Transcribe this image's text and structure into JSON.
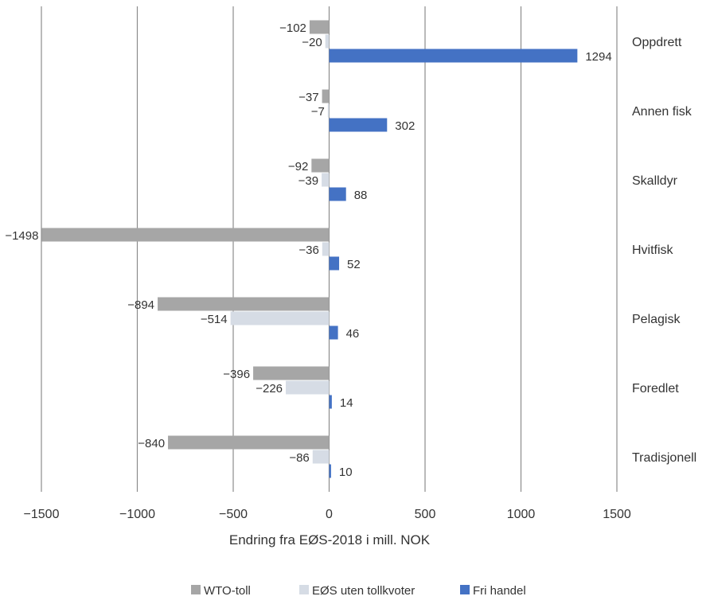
{
  "chart_data": {
    "type": "bar",
    "orientation": "horizontal",
    "categories": [
      "Oppdrett",
      "Annen fisk",
      "Skalldyr",
      "Hvitfisk",
      "Pelagisk",
      "Foredlet",
      "Tradisjonell"
    ],
    "series": [
      {
        "name": "WTO-toll",
        "color": "#a6a6a6",
        "values": [
          -102,
          -37,
          -92,
          -1498,
          -894,
          -396,
          -840
        ]
      },
      {
        "name": "EØS uten tollkvoter",
        "color": "#d6dce5",
        "values": [
          -20,
          -7,
          -39,
          -36,
          -514,
          -226,
          -86
        ]
      },
      {
        "name": "Fri handel",
        "color": "#4472c4",
        "values": [
          1294,
          302,
          88,
          52,
          46,
          14,
          10
        ]
      }
    ],
    "data_labels": [
      [
        "−102",
        "−37",
        "−92",
        "−1498",
        "−894",
        "−396",
        "−840"
      ],
      [
        "−20",
        "−7",
        "−39",
        "−36",
        "−514",
        "−226",
        "−86"
      ],
      [
        "1294",
        "302",
        "88",
        "52",
        "46",
        "14",
        "10"
      ]
    ],
    "xlabel": "Endring fra EØS-2018 i mill. NOK",
    "xlim": [
      -1500,
      1500
    ],
    "xticks": [
      -1500,
      -1000,
      -500,
      0,
      500,
      1000,
      1500
    ],
    "xtick_labels": [
      "−1500",
      "−1000",
      "−500",
      "0",
      "500",
      "1000",
      "1500"
    ],
    "gridlines": "vertical",
    "legend_position": "bottom"
  }
}
